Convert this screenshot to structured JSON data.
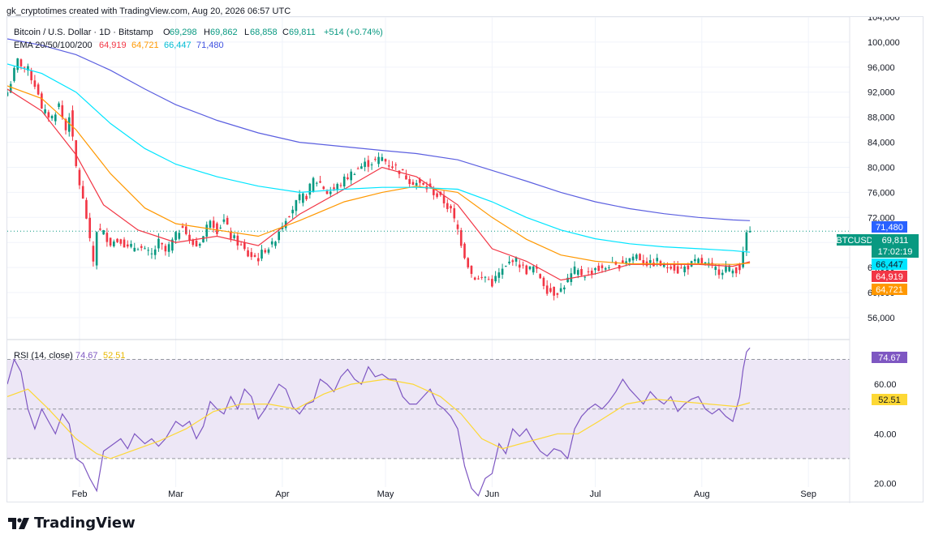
{
  "header": {
    "credit": "gk_cryptotimes created with TradingView.com, Aug 20, 2026 06:57 UTC"
  },
  "legend": {
    "symbol": "Bitcoin / U.S. Dollar · 1D · Bitstamp",
    "o_label": "O",
    "o": "69,298",
    "h_label": "H",
    "h": "69,862",
    "l_label": "L",
    "l": "68,858",
    "c_label": "C",
    "c": "69,811",
    "change": "+514 (+0.74%)",
    "ema_label": "EMA 20/50/100/200",
    "ema20": "64,919",
    "ema50": "64,721",
    "ema100": "66,447",
    "ema200": "71,480"
  },
  "rsi_legend": {
    "label": "RSI (14, close)",
    "rsi": "74.67",
    "ma": "52.51"
  },
  "badges": {
    "ema200": "71,480",
    "ticker": "BTCUSD",
    "price": "69,811",
    "countdown": "17:02:19",
    "ema100": "66,447",
    "ema20": "64,919",
    "ema50": "64,721",
    "rsi": "74.67",
    "rsi_ma": "52.51"
  },
  "brand": {
    "name": "TradingView"
  },
  "colors": {
    "up": "#089981",
    "down": "#f23645",
    "ema20": "#f23645",
    "ema50": "#ff9800",
    "ema100": "#00e5ff",
    "ema200": "#5b5fe0",
    "rsi": "#7e57c2",
    "rsi_ma": "#fdd835",
    "rsi_band": "#ede7f6"
  },
  "chart_data": {
    "type": "candlestick",
    "title": "Bitcoin / U.S. Dollar · 1D · Bitstamp",
    "price_axis": {
      "ticks": [
        56000,
        60000,
        64000,
        68000,
        72000,
        76000,
        80000,
        84000,
        88000,
        92000,
        96000,
        100000,
        104000
      ],
      "range": [
        52500,
        104000
      ]
    },
    "time_axis": {
      "ticks": [
        "Feb",
        "Mar",
        "Apr",
        "May",
        "Jun",
        "Jul",
        "Aug",
        "Sep"
      ],
      "tick_days": [
        21,
        49,
        80,
        110,
        141,
        171,
        202,
        233
      ],
      "range_days": [
        0,
        245
      ],
      "start": "2026-01-11"
    },
    "last_price": 69811,
    "candle_close_path": [
      [
        0,
        92000
      ],
      [
        3,
        97000
      ],
      [
        6,
        95500
      ],
      [
        9,
        92000
      ],
      [
        10,
        89000
      ],
      [
        13,
        88000
      ],
      [
        15,
        90000
      ],
      [
        17,
        86000
      ],
      [
        18,
        88500
      ],
      [
        20,
        80000
      ],
      [
        23,
        72000
      ],
      [
        24,
        68000
      ],
      [
        25,
        65000
      ],
      [
        26,
        70000
      ],
      [
        28,
        69500
      ],
      [
        30,
        68000
      ],
      [
        33,
        68500
      ],
      [
        35,
        67000
      ],
      [
        38,
        67500
      ],
      [
        40,
        66500
      ],
      [
        42,
        66000
      ],
      [
        44,
        68000
      ],
      [
        46,
        66500
      ],
      [
        49,
        69000
      ],
      [
        51,
        71000
      ],
      [
        53,
        68000
      ],
      [
        55,
        67500
      ],
      [
        57,
        69000
      ],
      [
        59,
        72000
      ],
      [
        61,
        70000
      ],
      [
        63,
        71500
      ],
      [
        65,
        69000
      ],
      [
        67,
        68000
      ],
      [
        70,
        66000
      ],
      [
        73,
        65500
      ],
      [
        75,
        67000
      ],
      [
        77,
        67500
      ],
      [
        79,
        70000
      ],
      [
        81,
        72000
      ],
      [
        83,
        73500
      ],
      [
        85,
        75000
      ],
      [
        87,
        75500
      ],
      [
        89,
        78000
      ],
      [
        91,
        77500
      ],
      [
        93,
        76000
      ],
      [
        95,
        76500
      ],
      [
        98,
        78000
      ],
      [
        101,
        79500
      ],
      [
        104,
        80500
      ],
      [
        107,
        81000
      ],
      [
        109,
        81500
      ],
      [
        111,
        80500
      ],
      [
        113,
        80000
      ],
      [
        115,
        79000
      ],
      [
        117,
        78000
      ],
      [
        119,
        77500
      ],
      [
        121,
        77000
      ],
      [
        123,
        76500
      ],
      [
        125,
        75500
      ],
      [
        127,
        74500
      ],
      [
        129,
        73000
      ],
      [
        131,
        70000
      ],
      [
        133,
        66000
      ],
      [
        135,
        63000
      ],
      [
        137,
        62000
      ],
      [
        139,
        62500
      ],
      [
        141,
        61500
      ],
      [
        143,
        63000
      ],
      [
        145,
        64000
      ],
      [
        147,
        65500
      ],
      [
        149,
        64500
      ],
      [
        151,
        63500
      ],
      [
        153,
        64000
      ],
      [
        155,
        62500
      ],
      [
        157,
        60500
      ],
      [
        159,
        60000
      ],
      [
        161,
        60500
      ],
      [
        163,
        62000
      ],
      [
        165,
        63500
      ],
      [
        167,
        63000
      ],
      [
        169,
        63000
      ],
      [
        171,
        64000
      ],
      [
        173,
        63500
      ],
      [
        175,
        64500
      ],
      [
        177,
        64000
      ],
      [
        179,
        65000
      ],
      [
        181,
        65500
      ],
      [
        183,
        66000
      ],
      [
        185,
        65000
      ],
      [
        187,
        64500
      ],
      [
        189,
        65000
      ],
      [
        191,
        64000
      ],
      [
        193,
        64500
      ],
      [
        195,
        63500
      ],
      [
        197,
        64000
      ],
      [
        199,
        64500
      ],
      [
        201,
        65000
      ],
      [
        203,
        64500
      ],
      [
        205,
        64000
      ],
      [
        207,
        63500
      ],
      [
        209,
        64000
      ],
      [
        211,
        63500
      ],
      [
        213,
        64000
      ],
      [
        214,
        66000
      ],
      [
        215,
        69500
      ],
      [
        216,
        69811
      ]
    ],
    "series": [
      {
        "name": "EMA 20",
        "last": 64919,
        "points": [
          [
            0,
            92500
          ],
          [
            10,
            89000
          ],
          [
            20,
            82000
          ],
          [
            28,
            74000
          ],
          [
            38,
            70000
          ],
          [
            49,
            68000
          ],
          [
            61,
            69000
          ],
          [
            73,
            67500
          ],
          [
            85,
            72500
          ],
          [
            98,
            76500
          ],
          [
            109,
            80000
          ],
          [
            119,
            78500
          ],
          [
            131,
            74000
          ],
          [
            141,
            67000
          ],
          [
            151,
            65000
          ],
          [
            161,
            62000
          ],
          [
            171,
            63000
          ],
          [
            181,
            64500
          ],
          [
            191,
            64500
          ],
          [
            201,
            64500
          ],
          [
            211,
            64200
          ],
          [
            216,
            64919
          ]
        ]
      },
      {
        "name": "EMA 50",
        "last": 64721,
        "points": [
          [
            0,
            93000
          ],
          [
            10,
            91000
          ],
          [
            20,
            86000
          ],
          [
            30,
            79000
          ],
          [
            40,
            73500
          ],
          [
            49,
            71000
          ],
          [
            61,
            70000
          ],
          [
            73,
            69000
          ],
          [
            85,
            71500
          ],
          [
            98,
            74500
          ],
          [
            109,
            76000
          ],
          [
            119,
            77000
          ],
          [
            131,
            76000
          ],
          [
            141,
            72000
          ],
          [
            151,
            68500
          ],
          [
            161,
            66000
          ],
          [
            171,
            65000
          ],
          [
            181,
            64600
          ],
          [
            191,
            64600
          ],
          [
            201,
            64600
          ],
          [
            211,
            64500
          ],
          [
            216,
            64721
          ]
        ]
      },
      {
        "name": "EMA 100",
        "last": 66447,
        "points": [
          [
            0,
            96500
          ],
          [
            10,
            95000
          ],
          [
            20,
            92000
          ],
          [
            30,
            87000
          ],
          [
            40,
            83000
          ],
          [
            49,
            80500
          ],
          [
            61,
            78500
          ],
          [
            73,
            77000
          ],
          [
            85,
            76000
          ],
          [
            98,
            76500
          ],
          [
            109,
            76800
          ],
          [
            119,
            76800
          ],
          [
            131,
            76500
          ],
          [
            141,
            74500
          ],
          [
            151,
            72000
          ],
          [
            161,
            70000
          ],
          [
            171,
            68600
          ],
          [
            181,
            67800
          ],
          [
            191,
            67300
          ],
          [
            201,
            67000
          ],
          [
            211,
            66700
          ],
          [
            216,
            66447
          ]
        ]
      },
      {
        "name": "EMA 200",
        "last": 71480,
        "points": [
          [
            0,
            100500
          ],
          [
            10,
            99500
          ],
          [
            20,
            98000
          ],
          [
            30,
            95500
          ],
          [
            40,
            92500
          ],
          [
            49,
            90000
          ],
          [
            61,
            87500
          ],
          [
            73,
            85500
          ],
          [
            85,
            84000
          ],
          [
            98,
            83300
          ],
          [
            109,
            82700
          ],
          [
            119,
            82200
          ],
          [
            131,
            81200
          ],
          [
            141,
            79500
          ],
          [
            151,
            77800
          ],
          [
            161,
            76000
          ],
          [
            171,
            74500
          ],
          [
            181,
            73400
          ],
          [
            191,
            72600
          ],
          [
            201,
            72000
          ],
          [
            211,
            71600
          ],
          [
            216,
            71480
          ]
        ]
      }
    ],
    "rsi": {
      "title": "RSI (14, close)",
      "ticks": [
        20,
        40,
        60
      ],
      "bands": [
        30,
        50,
        70
      ],
      "range": [
        12,
        78
      ],
      "rsi_points": [
        [
          0,
          60
        ],
        [
          2,
          70
        ],
        [
          4,
          65
        ],
        [
          6,
          50
        ],
        [
          8,
          42
        ],
        [
          10,
          50
        ],
        [
          12,
          45
        ],
        [
          14,
          40
        ],
        [
          16,
          48
        ],
        [
          18,
          44
        ],
        [
          20,
          30
        ],
        [
          22,
          28
        ],
        [
          24,
          22
        ],
        [
          26,
          17
        ],
        [
          28,
          33
        ],
        [
          30,
          35
        ],
        [
          33,
          38
        ],
        [
          35,
          34
        ],
        [
          37,
          40
        ],
        [
          40,
          36
        ],
        [
          42,
          38
        ],
        [
          44,
          35
        ],
        [
          46,
          38
        ],
        [
          49,
          45
        ],
        [
          51,
          43
        ],
        [
          53,
          45
        ],
        [
          55,
          38
        ],
        [
          57,
          43
        ],
        [
          59,
          53
        ],
        [
          61,
          50
        ],
        [
          63,
          48
        ],
        [
          65,
          55
        ],
        [
          67,
          50
        ],
        [
          69,
          58
        ],
        [
          71,
          55
        ],
        [
          73,
          46
        ],
        [
          75,
          50
        ],
        [
          77,
          55
        ],
        [
          79,
          60
        ],
        [
          81,
          58
        ],
        [
          83,
          51
        ],
        [
          85,
          48
        ],
        [
          87,
          52
        ],
        [
          89,
          53
        ],
        [
          91,
          62
        ],
        [
          93,
          60
        ],
        [
          95,
          57
        ],
        [
          97,
          63
        ],
        [
          99,
          66
        ],
        [
          101,
          62
        ],
        [
          103,
          60
        ],
        [
          105,
          67
        ],
        [
          107,
          63
        ],
        [
          109,
          64
        ],
        [
          111,
          62
        ],
        [
          113,
          62
        ],
        [
          115,
          55
        ],
        [
          117,
          52
        ],
        [
          119,
          52
        ],
        [
          121,
          55
        ],
        [
          123,
          58
        ],
        [
          125,
          52
        ],
        [
          127,
          50
        ],
        [
          129,
          47
        ],
        [
          131,
          42
        ],
        [
          133,
          27
        ],
        [
          135,
          18
        ],
        [
          137,
          15
        ],
        [
          139,
          22
        ],
        [
          141,
          24
        ],
        [
          143,
          36
        ],
        [
          145,
          32
        ],
        [
          147,
          42
        ],
        [
          149,
          39
        ],
        [
          151,
          42
        ],
        [
          153,
          37
        ],
        [
          155,
          33
        ],
        [
          157,
          31
        ],
        [
          159,
          34
        ],
        [
          161,
          33
        ],
        [
          163,
          30
        ],
        [
          165,
          42
        ],
        [
          167,
          47
        ],
        [
          169,
          50
        ],
        [
          171,
          52
        ],
        [
          173,
          50
        ],
        [
          175,
          53
        ],
        [
          177,
          57
        ],
        [
          179,
          62
        ],
        [
          181,
          58
        ],
        [
          183,
          55
        ],
        [
          185,
          52
        ],
        [
          187,
          57
        ],
        [
          189,
          54
        ],
        [
          191,
          52
        ],
        [
          193,
          55
        ],
        [
          195,
          49
        ],
        [
          197,
          52
        ],
        [
          199,
          54
        ],
        [
          201,
          55
        ],
        [
          203,
          50
        ],
        [
          205,
          48
        ],
        [
          207,
          50
        ],
        [
          209,
          47
        ],
        [
          211,
          45
        ],
        [
          213,
          55
        ],
        [
          214,
          66
        ],
        [
          215,
          73
        ],
        [
          216,
          74.67
        ]
      ],
      "ma_points": [
        [
          0,
          55
        ],
        [
          6,
          58
        ],
        [
          12,
          50
        ],
        [
          20,
          38
        ],
        [
          26,
          32
        ],
        [
          30,
          30
        ],
        [
          36,
          33
        ],
        [
          44,
          37
        ],
        [
          52,
          42
        ],
        [
          60,
          49
        ],
        [
          68,
          52
        ],
        [
          76,
          52
        ],
        [
          84,
          50
        ],
        [
          92,
          56
        ],
        [
          100,
          60
        ],
        [
          110,
          62
        ],
        [
          118,
          60
        ],
        [
          126,
          55
        ],
        [
          132,
          48
        ],
        [
          138,
          38
        ],
        [
          144,
          34
        ],
        [
          152,
          37
        ],
        [
          160,
          40
        ],
        [
          166,
          40
        ],
        [
          172,
          45
        ],
        [
          180,
          52
        ],
        [
          188,
          54
        ],
        [
          196,
          53
        ],
        [
          204,
          52
        ],
        [
          212,
          51
        ],
        [
          216,
          52.51
        ]
      ],
      "last_rsi": 74.67,
      "last_ma": 52.51
    }
  }
}
